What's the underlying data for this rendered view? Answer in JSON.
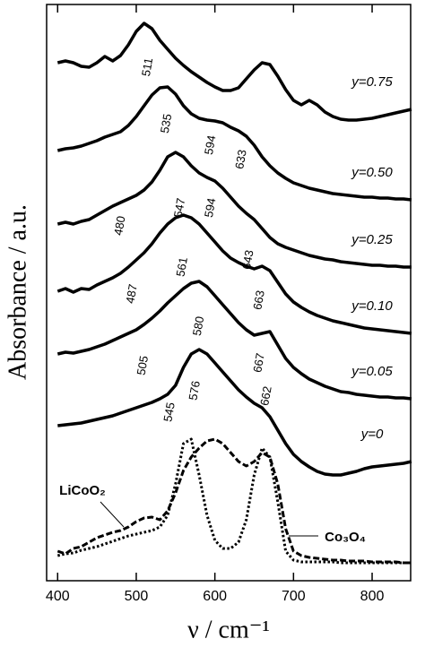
{
  "chart_data": {
    "type": "line",
    "x_label": "ν / cm⁻¹",
    "y_label": "Absorbance / a.u.",
    "x": [
      400,
      410,
      420,
      430,
      440,
      450,
      460,
      470,
      480,
      490,
      500,
      510,
      520,
      530,
      540,
      550,
      560,
      570,
      580,
      590,
      600,
      610,
      620,
      630,
      640,
      650,
      660,
      670,
      680,
      690,
      700,
      710,
      720,
      730,
      740,
      750,
      760,
      770,
      780,
      790,
      800,
      810,
      820,
      830,
      840,
      850
    ],
    "xlim": [
      386,
      849
    ],
    "xticks": [
      400,
      500,
      600,
      700,
      800
    ],
    "ylim": [
      0,
      643
    ],
    "series": [
      {
        "name": "y=0.75",
        "color": "#000000",
        "style": "solid",
        "values": [
          578,
          580,
          578,
          574,
          573,
          578,
          585,
          580,
          586,
          598,
          613,
          622,
          616,
          603,
          593,
          583,
          575,
          568,
          562,
          556,
          551,
          547,
          547,
          550,
          560,
          570,
          578,
          576,
          563,
          548,
          536,
          531,
          536,
          531,
          523,
          518,
          515,
          514,
          514,
          515,
          516,
          518,
          520,
          522,
          524,
          526
        ]
      },
      {
        "name": "y=0.50",
        "color": "#000000",
        "style": "solid",
        "values": [
          480,
          482,
          483,
          485,
          488,
          491,
          495,
          498,
          501,
          508,
          518,
          530,
          542,
          550,
          551,
          543,
          530,
          521,
          516,
          514,
          513,
          511,
          506,
          502,
          496,
          486,
          473,
          463,
          455,
          449,
          444,
          441,
          438,
          436,
          434,
          432,
          431,
          430,
          429,
          428,
          428,
          427,
          427,
          426,
          426,
          425
        ]
      },
      {
        "name": "y=0.25",
        "color": "#000000",
        "style": "solid",
        "values": [
          398,
          400,
          398,
          401,
          403,
          408,
          413,
          418,
          422,
          426,
          430,
          436,
          445,
          458,
          473,
          478,
          473,
          463,
          455,
          450,
          446,
          438,
          428,
          418,
          410,
          403,
          393,
          383,
          376,
          372,
          369,
          366,
          363,
          361,
          359,
          358,
          356,
          355,
          354,
          353,
          352,
          352,
          351,
          351,
          350,
          350
        ]
      },
      {
        "name": "y=0.10",
        "color": "#000000",
        "style": "solid",
        "values": [
          323,
          326,
          322,
          326,
          325,
          330,
          334,
          338,
          343,
          350,
          358,
          366,
          376,
          388,
          398,
          405,
          408,
          405,
          398,
          388,
          378,
          368,
          360,
          355,
          351,
          348,
          351,
          346,
          333,
          320,
          311,
          305,
          300,
          296,
          293,
          290,
          288,
          286,
          284,
          282,
          281,
          280,
          279,
          278,
          277,
          276
        ]
      },
      {
        "name": "y=0.05",
        "color": "#000000",
        "style": "solid",
        "values": [
          253,
          255,
          254,
          256,
          258,
          261,
          264,
          268,
          272,
          276,
          280,
          286,
          293,
          301,
          310,
          318,
          326,
          332,
          334,
          328,
          318,
          308,
          298,
          288,
          280,
          274,
          276,
          278,
          263,
          248,
          238,
          231,
          225,
          221,
          217,
          214,
          211,
          210,
          208,
          207,
          206,
          205,
          205,
          204,
          204,
          203
        ]
      },
      {
        "name": "y=0",
        "color": "#000000",
        "style": "solid",
        "values": [
          173,
          174,
          175,
          176,
          178,
          180,
          182,
          184,
          187,
          190,
          193,
          196,
          199,
          203,
          208,
          218,
          238,
          253,
          258,
          253,
          243,
          233,
          223,
          213,
          205,
          198,
          193,
          183,
          168,
          153,
          141,
          133,
          127,
          122,
          119,
          118,
          118,
          120,
          122,
          125,
          127,
          128,
          129,
          130,
          131,
          133
        ]
      },
      {
        "name": "LiCoO₂",
        "color": "#000000",
        "style": "dashed",
        "values": [
          33,
          30,
          36,
          38,
          43,
          48,
          51,
          54,
          56,
          60,
          66,
          70,
          71,
          68,
          78,
          98,
          123,
          138,
          148,
          156,
          158,
          153,
          143,
          133,
          128,
          133,
          143,
          138,
          108,
          58,
          33,
          28,
          26,
          25,
          24,
          23,
          23,
          22,
          22,
          22,
          21,
          21,
          21,
          21,
          20,
          20
        ]
      },
      {
        "name": "Co₃O₄",
        "color": "#000000",
        "style": "dotted",
        "values": [
          28,
          30,
          31,
          34,
          36,
          38,
          41,
          44,
          47,
          50,
          52,
          54,
          56,
          60,
          73,
          108,
          153,
          158,
          118,
          73,
          45,
          36,
          36,
          43,
          68,
          118,
          148,
          138,
          88,
          33,
          23,
          21,
          21,
          21,
          21,
          21,
          20,
          20,
          20,
          20,
          20,
          20,
          20,
          20,
          20,
          20
        ]
      }
    ],
    "annotations": [
      {
        "text": "511",
        "x": 515,
        "y": 573
      },
      {
        "text": "535",
        "x": 539,
        "y": 510
      },
      {
        "text": "594",
        "x": 595,
        "y": 486
      },
      {
        "text": "633",
        "x": 634,
        "y": 470
      },
      {
        "text": "547",
        "x": 556,
        "y": 416
      },
      {
        "text": "594",
        "x": 595,
        "y": 416
      },
      {
        "text": "480",
        "x": 480,
        "y": 396
      },
      {
        "text": "561",
        "x": 559,
        "y": 350
      },
      {
        "text": "643",
        "x": 643,
        "y": 358
      },
      {
        "text": "487",
        "x": 495,
        "y": 320
      },
      {
        "text": "580",
        "x": 580,
        "y": 284
      },
      {
        "text": "663",
        "x": 657,
        "y": 313
      },
      {
        "text": "505",
        "x": 509,
        "y": 240
      },
      {
        "text": "667",
        "x": 657,
        "y": 243
      },
      {
        "text": "576",
        "x": 575,
        "y": 212
      },
      {
        "text": "545",
        "x": 543,
        "y": 188
      },
      {
        "text": "662",
        "x": 666,
        "y": 206
      }
    ]
  }
}
